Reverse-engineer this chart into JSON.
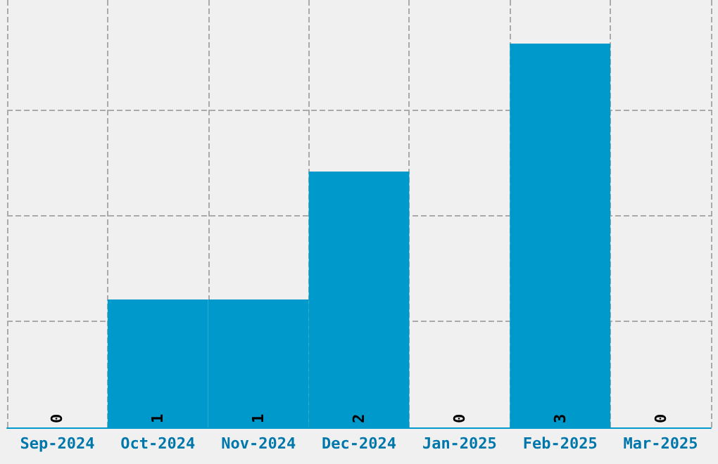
{
  "chart_data": {
    "type": "bar",
    "categories": [
      "Sep-2024",
      "Oct-2024",
      "Nov-2024",
      "Dec-2024",
      "Jan-2025",
      "Feb-2025",
      "Mar-2025"
    ],
    "values": [
      0,
      1,
      1,
      2,
      0,
      3,
      0
    ],
    "color": "#0099cc",
    "ylim": [
      0,
      3.34
    ],
    "yticks": [
      {
        "value": 0,
        "label": null
      },
      {
        "value": 0.83,
        "label": null
      },
      {
        "value": 1.66,
        "label": null
      },
      {
        "value": 2.48,
        "label": null
      }
    ],
    "tick_labels": "x",
    "grid": true,
    "data_labels": true
  }
}
